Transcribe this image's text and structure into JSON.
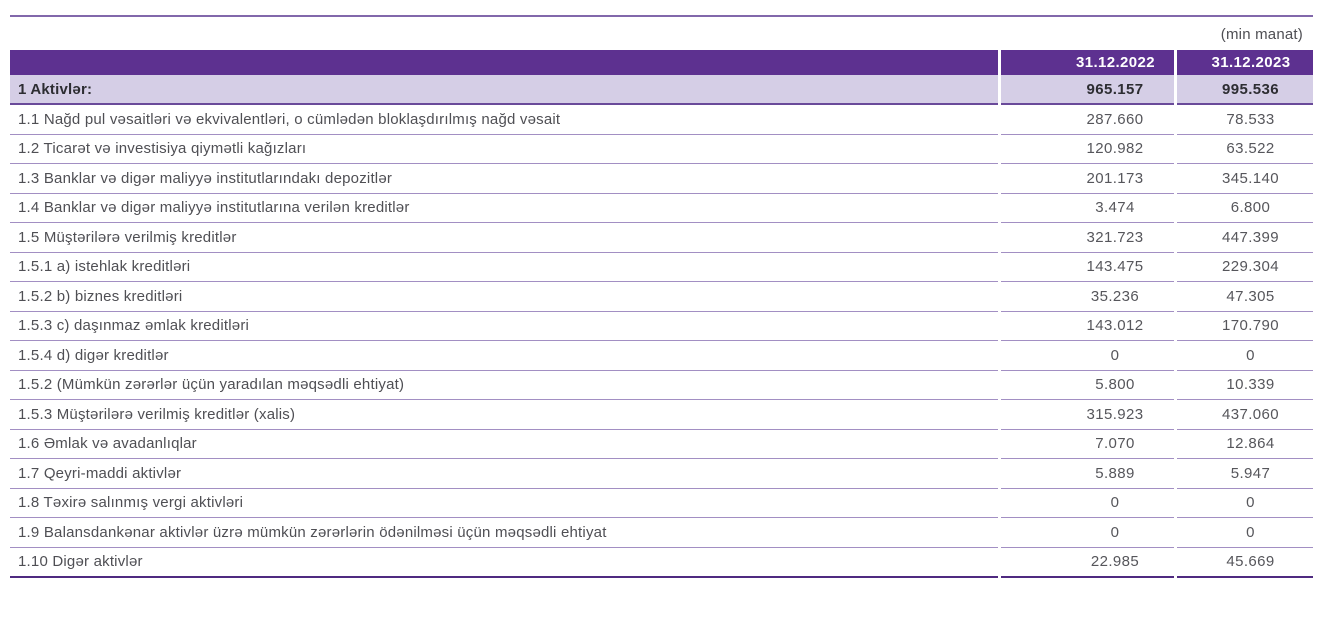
{
  "unit_note": "(min manat)",
  "colors": {
    "header_bg": "#5d3190",
    "total_row_bg": "#d5cee6",
    "row_separator": "#a28fc3",
    "total_row_separator": "#6a4a9a",
    "bottom_rule": "#4f2a80",
    "top_rule": "#8268ab",
    "header_text": "#ffffff",
    "body_text": "#4f4f54"
  },
  "table": {
    "date_columns": [
      "31.12.2022",
      "31.12.2023"
    ],
    "total_row": {
      "label": "1 Aktivlər:",
      "values": [
        "965.157",
        "995.536"
      ]
    },
    "rows": [
      {
        "label": "1.1 Nağd pul vəsaitləri və ekvivalentləri, o cümlədən bloklaşdırılmış nağd vəsait",
        "values": [
          "287.660",
          "78.533"
        ]
      },
      {
        "label": "1.2 Ticarət və investisiya qiymətli kağızları",
        "values": [
          "120.982",
          "63.522"
        ]
      },
      {
        "label": "1.3 Banklar və digər maliyyə institutlarındakı depozitlər",
        "values": [
          "201.173",
          "345.140"
        ]
      },
      {
        "label": "1.4 Banklar və digər maliyyə institutlarına verilən kreditlər",
        "values": [
          "3.474",
          "6.800"
        ]
      },
      {
        "label": "1.5 Müştərilərə verilmiş kreditlər",
        "values": [
          "321.723",
          "447.399"
        ]
      },
      {
        "label": "1.5.1 a) istehlak kreditləri",
        "values": [
          "143.475",
          "229.304"
        ]
      },
      {
        "label": "1.5.2 b) biznes kreditləri",
        "values": [
          "35.236",
          "47.305"
        ]
      },
      {
        "label": "1.5.3 c) daşınmaz əmlak kreditləri",
        "values": [
          "143.012",
          "170.790"
        ]
      },
      {
        "label": "1.5.4 d) digər kreditlər",
        "values": [
          "0",
          "0"
        ]
      },
      {
        "label": "1.5.2 (Mümkün zərərlər üçün yaradılan məqsədli ehtiyat)",
        "values": [
          "5.800",
          "10.339"
        ]
      },
      {
        "label": "1.5.3 Müştərilərə verilmiş kreditlər (xalis)",
        "values": [
          "315.923",
          "437.060"
        ]
      },
      {
        "label": "1.6 Əmlak və avadanlıqlar",
        "values": [
          "7.070",
          "12.864"
        ]
      },
      {
        "label": "1.7 Qeyri-maddi aktivlər",
        "values": [
          "5.889",
          "5.947"
        ]
      },
      {
        "label": "1.8 Təxirə salınmış vergi aktivləri",
        "values": [
          "0",
          "0"
        ]
      },
      {
        "label": "1.9 Balansdankənar aktivlər üzrə mümkün zərərlərin ödənilməsi üçün məqsədli ehtiyat",
        "values": [
          "0",
          "0"
        ]
      },
      {
        "label": "1.10 Digər aktivlər",
        "values": [
          "22.985",
          "45.669"
        ]
      }
    ]
  }
}
